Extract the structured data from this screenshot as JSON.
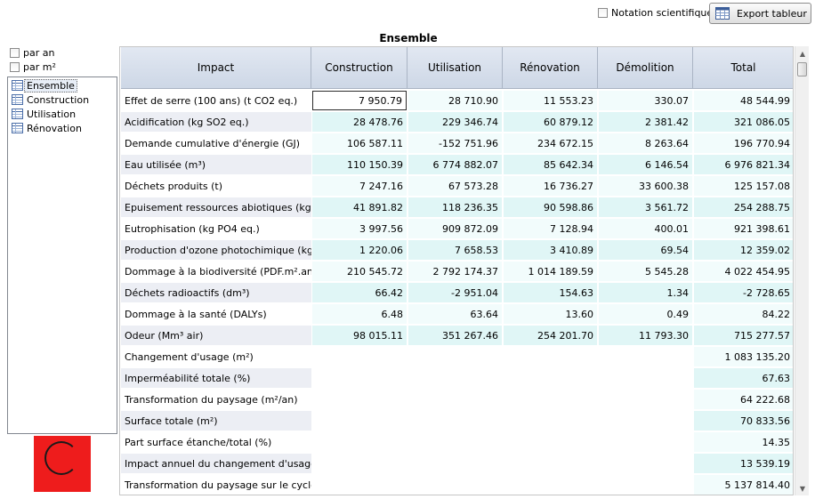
{
  "toolbar": {
    "scientific_label": "Notation scientifique",
    "export_label": "Export tableur",
    "export_icon": "spreadsheet-icon"
  },
  "table_title": "Ensemble",
  "left_panel": {
    "per_year_label": "par an",
    "per_m2_label": "par m²",
    "tree": [
      {
        "label": "Ensemble",
        "selected": true
      },
      {
        "label": "Construction",
        "selected": false
      },
      {
        "label": "Utilisation",
        "selected": false
      },
      {
        "label": "Rénovation",
        "selected": false
      }
    ]
  },
  "grid": {
    "columns": [
      "Impact",
      "Construction",
      "Utilisation",
      "Rénovation",
      "Démolition",
      "Total"
    ],
    "rows": [
      {
        "label": "Effet de serre (100 ans) (t CO2 eq.)",
        "values": [
          "7 950.79",
          "28 710.90",
          "11 553.23",
          "330.07",
          "48 544.99"
        ]
      },
      {
        "label": "Acidification (kg SO2 eq.)",
        "values": [
          "28 478.76",
          "229 346.74",
          "60 879.12",
          "2 381.42",
          "321 086.05"
        ]
      },
      {
        "label": "Demande cumulative d'énergie (GJ)",
        "values": [
          "106 587.11",
          "-152 751.96",
          "234 672.15",
          "8 263.64",
          "196 770.94"
        ]
      },
      {
        "label": "Eau utilisée (m³)",
        "values": [
          "110 150.39",
          "6 774 882.07",
          "85 642.34",
          "6 146.54",
          "6 976 821.34"
        ]
      },
      {
        "label": "Déchets produits (t)",
        "values": [
          "7 247.16",
          "67 573.28",
          "16 736.27",
          "33 600.38",
          "125 157.08"
        ]
      },
      {
        "label": "Epuisement ressources abiotiques (kg d'...",
        "values": [
          "41 891.82",
          "118 236.35",
          "90 598.86",
          "3 561.72",
          "254 288.75"
        ]
      },
      {
        "label": "Eutrophisation (kg PO4 eq.)",
        "values": [
          "3 997.56",
          "909 872.09",
          "7 128.94",
          "400.01",
          "921 398.61"
        ]
      },
      {
        "label": "Production d'ozone photochimique (kg d'...",
        "values": [
          "1 220.06",
          "7 658.53",
          "3 410.89",
          "69.54",
          "12 359.02"
        ]
      },
      {
        "label": "Dommage à la biodiversité (PDF.m².an)",
        "values": [
          "210 545.72",
          "2 792 174.37",
          "1 014 189.59",
          "5 545.28",
          "4 022 454.95"
        ]
      },
      {
        "label": "Déchets radioactifs (dm³)",
        "values": [
          "66.42",
          "-2 951.04",
          "154.63",
          "1.34",
          "-2 728.65"
        ]
      },
      {
        "label": "Dommage à la santé (DALYs)",
        "values": [
          "6.48",
          "63.64",
          "13.60",
          "0.49",
          "84.22"
        ]
      },
      {
        "label": "Odeur (Mm³ air)",
        "values": [
          "98 015.11",
          "351 267.46",
          "254 201.70",
          "11 793.30",
          "715 277.57"
        ]
      },
      {
        "label": "Changement d'usage (m²)",
        "values": [
          "",
          "",
          "",
          "",
          "1 083 135.20"
        ]
      },
      {
        "label": "Imperméabilité totale (%)",
        "values": [
          "",
          "",
          "",
          "",
          "67.63"
        ]
      },
      {
        "label": "Transformation du paysage (m²/an)",
        "values": [
          "",
          "",
          "",
          "",
          "64 222.68"
        ]
      },
      {
        "label": "Surface totale (m²)",
        "values": [
          "",
          "",
          "",
          "",
          "70 833.56"
        ]
      },
      {
        "label": "Part surface étanche/total (%)",
        "values": [
          "",
          "",
          "",
          "",
          "14.35"
        ]
      },
      {
        "label": "Impact annuel du changement d'usage (...",
        "values": [
          "",
          "",
          "",
          "",
          "13 539.19"
        ]
      },
      {
        "label": "Transformation du paysage sur le cycle ...",
        "values": [
          "",
          "",
          "",
          "",
          "5 137 814.40"
        ]
      }
    ]
  }
}
